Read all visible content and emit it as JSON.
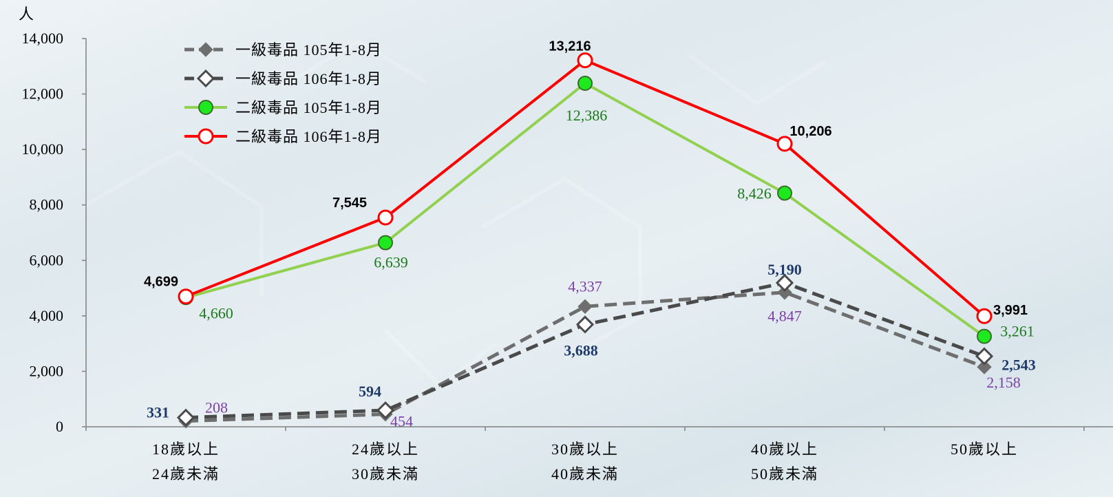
{
  "chart_data": {
    "type": "line",
    "ylabel": "人",
    "ylim": [
      0,
      14000
    ],
    "yticks": [
      "0",
      "2,000",
      "4,000",
      "6,000",
      "8,000",
      "10,000",
      "12,000",
      "14,000"
    ],
    "categories": [
      [
        "18歲以上",
        "24歲未滿"
      ],
      [
        "24歲以上",
        "30歲未滿"
      ],
      [
        "30歲以上",
        "40歲未滿"
      ],
      [
        "40歲以上",
        "50歲未滿"
      ],
      [
        "50歲以上",
        ""
      ]
    ],
    "legend_position": "top-left",
    "series": [
      {
        "name": "一級毒品 105年1-8月",
        "values": [
          208,
          454,
          4337,
          4847,
          2158
        ],
        "labels": [
          "208",
          "454",
          "4,337",
          "4,847",
          "2,158"
        ],
        "color": "#6e6e6e",
        "marker": "diamond-filled",
        "dashed": true,
        "label_style": "purple"
      },
      {
        "name": "一級毒品 106年1-8月",
        "values": [
          331,
          594,
          3688,
          5190,
          2543
        ],
        "labels": [
          "331",
          "594",
          "3,688",
          "5,190",
          "2,543"
        ],
        "color": "#4a4a4a",
        "marker": "diamond-open",
        "dashed": true,
        "label_style": "navy"
      },
      {
        "name": "二級毒品 105年1-8月",
        "values": [
          4660,
          6639,
          12386,
          8426,
          3261
        ],
        "labels": [
          "4,660",
          "6,639",
          "12,386",
          "8,426",
          "3,261"
        ],
        "color": "#92d050",
        "marker": "circle-green",
        "dashed": false,
        "label_style": "green"
      },
      {
        "name": "二級毒品 106年1-8月",
        "values": [
          4699,
          7545,
          13216,
          10206,
          3991
        ],
        "labels": [
          "4,699",
          "7,545",
          "13,216",
          "10,206",
          "3,991"
        ],
        "color": "#ff0000",
        "marker": "circle-open",
        "dashed": false,
        "label_style": "black"
      }
    ]
  }
}
